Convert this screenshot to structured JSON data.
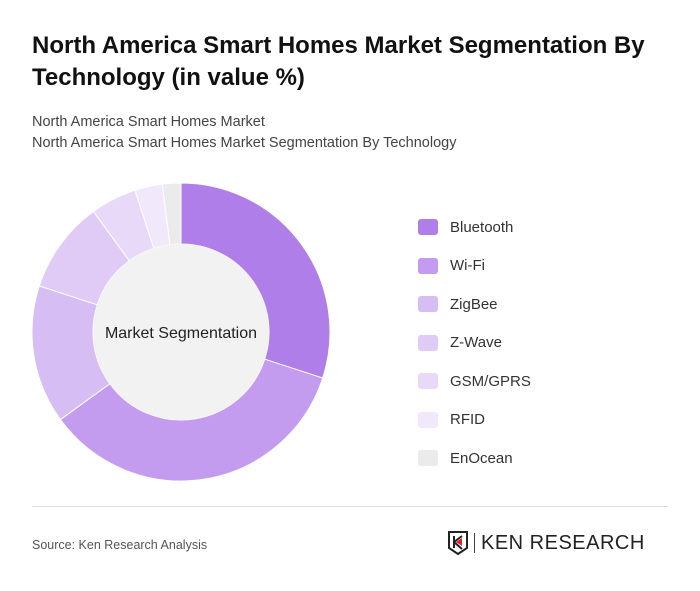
{
  "title": "North America Smart Homes Market Segmentation By Technology (in value %)",
  "subtitle1": "North America Smart Homes Market",
  "subtitle2": "North America Smart Homes Market Segmentation By Technology",
  "source": "Source: Ken Research Analysis",
  "logo_text": "KEN RESEARCH",
  "chart_data": {
    "type": "pie",
    "donut": true,
    "center_label": "Market Segmentation",
    "legend_position": "right",
    "categories": [
      "Bluetooth",
      "Wi-Fi",
      "ZigBee",
      "Z-Wave",
      "GSM/GPRS",
      "RFID",
      "EnOcean"
    ],
    "values": [
      30,
      35,
      15,
      10,
      5,
      3,
      2
    ],
    "colors": [
      "#b07ee8",
      "#c49cef",
      "#d6bdf4",
      "#dfcbf6",
      "#e8d9f9",
      "#f1e9fb",
      "#ebebeb"
    ]
  }
}
